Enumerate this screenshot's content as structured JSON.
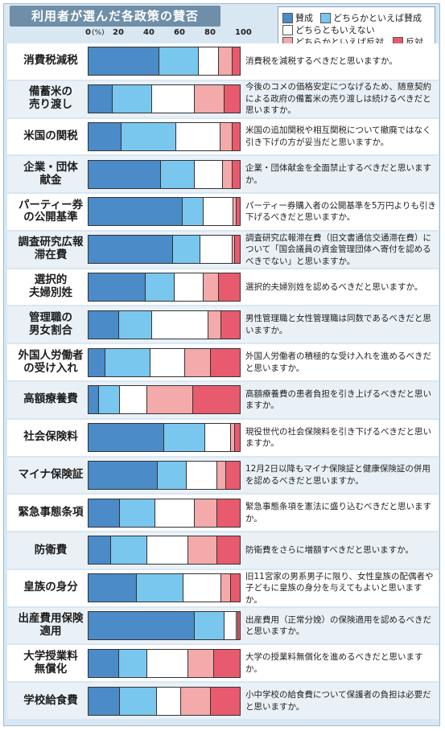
{
  "title": "利用者が選んだ各政策の賛否",
  "legend": [
    {
      "label": "賛成",
      "color": "#4a8bc8"
    },
    {
      "label": "どちらかといえば賛成",
      "color": "#79c7ee"
    },
    {
      "label": "どちらともいえない",
      "color": "#ffffff"
    },
    {
      "label": "どちらかといえば反対",
      "color": "#f4aaaa"
    },
    {
      "label": "反対",
      "color": "#e85a6e"
    }
  ],
  "chart_data": {
    "type": "bar",
    "orientation": "horizontal",
    "stacked": true,
    "unit": "(%)",
    "xlim": [
      0,
      100
    ],
    "xticks": [
      "0",
      "20",
      "40",
      "60",
      "80",
      "100"
    ],
    "series_names": [
      "賛成",
      "どちらかといえば賛成",
      "どちらともいえない",
      "どちらかといえば反対",
      "反対"
    ],
    "categories": [
      "消費税減税",
      "備蓄米の\n売り渡し",
      "米国の関税",
      "企業・団体\n献金",
      "パーティー券\nの公開基準",
      "調査研究広報\n滞在費",
      "選択的\n夫婦別姓",
      "管理職の\n男女割合",
      "外国人労働者\nの受け入れ",
      "高額療養費",
      "社会保険料",
      "マイナ保険証",
      "緊急事態条項",
      "防衛費",
      "皇族の身分",
      "出産費用保険\n適用",
      "大学授業料\n無償化",
      "学校給食費"
    ],
    "rows": [
      [
        47,
        26,
        13,
        9,
        5
      ],
      [
        16,
        26,
        28,
        20,
        10
      ],
      [
        22,
        36,
        29,
        8,
        5
      ],
      [
        48,
        22,
        19,
        6,
        5
      ],
      [
        62,
        14,
        20,
        2,
        2
      ],
      [
        56,
        18,
        21,
        2,
        3
      ],
      [
        38,
        19,
        19,
        10,
        14
      ],
      [
        20,
        22,
        37,
        9,
        12
      ],
      [
        11,
        30,
        23,
        17,
        19
      ],
      [
        7,
        14,
        18,
        30,
        31
      ],
      [
        50,
        27,
        17,
        3,
        3
      ],
      [
        46,
        19,
        20,
        6,
        9
      ],
      [
        21,
        23,
        26,
        15,
        15
      ],
      [
        15,
        24,
        27,
        19,
        15
      ],
      [
        32,
        31,
        25,
        6,
        6
      ],
      [
        70,
        20,
        8,
        1,
        1
      ],
      [
        20,
        19,
        27,
        17,
        17
      ],
      [
        21,
        24,
        16,
        20,
        19
      ]
    ]
  },
  "questions": [
    "消費税を減税するべきだと思いますか。",
    "今後のコメの価格安定につなげるため、随意契約による政府の備蓄米の売り渡しは続けるべきだと思いますか。",
    "米国の追加関税や相互関税について撤廃ではなく引き下げの方が妥当だと思いますか。",
    "企業・団体献金を全面禁止するべきだと思いますか。",
    "パーティー券購入者の公開基準を5万円よりも引き下げるべきだと思いますか。",
    "調査研究広報滞在費（旧文書通信交通滞在費）について「国会議員の資金管理団体へ寄付を認めるべきでない」と思いますか。",
    "選択的夫婦別姓を認めるべきだと思いますか。",
    "男性管理職と女性管理職は同数であるべきだと思いますか。",
    "外国人労働者の積極的な受け入れを進めるべきだと思いますか。",
    "高額療養費の患者負担を引き上げるべきだと思いますか。",
    "現役世代の社会保険料を引き下げるべきだと思いますか。",
    "12月2日以降もマイナ保険証と健康保険証の併用を認めるべきだと思いますか。",
    "緊急事態条項を憲法に盛り込むべきだと思いますか。",
    "防衛費をさらに増額すべきだと思いますか。",
    "旧11宮家の男系男子に限り、女性皇族の配偶者や子どもに皇族の身分を与えてもよいと思いますか。",
    "出産費用（正常分娩）の保険適用を認めるべきだと思いますか。",
    "大学の授業料無償化を進めるべきだと思いますか。",
    "小中学校の給食費について保護者の負担は必要だと思いますか。"
  ]
}
